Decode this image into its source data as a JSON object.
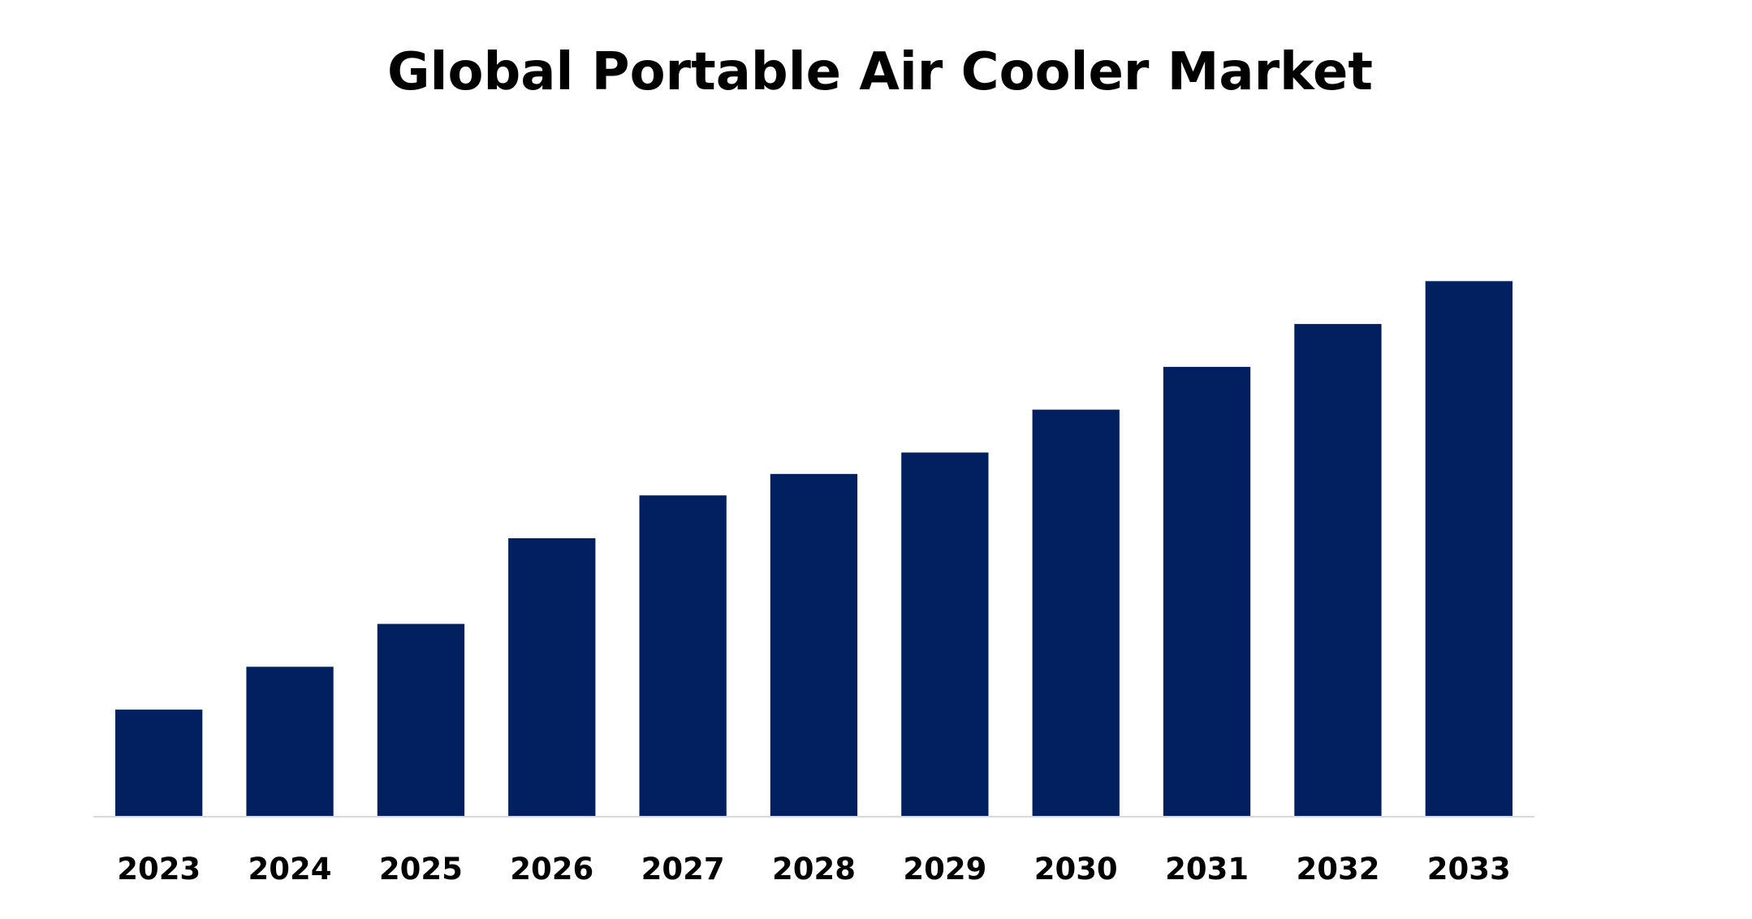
{
  "chart_data": {
    "type": "bar",
    "title": "Global Portable Air Cooler Market",
    "xlabel": "",
    "ylabel": "",
    "categories": [
      "2023",
      "2024",
      "2025",
      "2026",
      "2027",
      "2028",
      "2029",
      "2030",
      "2031",
      "2032",
      "2033"
    ],
    "values": [
      1.0,
      1.4,
      1.8,
      2.6,
      3.0,
      3.2,
      3.4,
      3.8,
      4.2,
      4.6,
      5.0
    ],
    "ylim": [
      0,
      6.2
    ],
    "grid": false,
    "legend": "none",
    "bar_color": "#02205f",
    "axis_color": "#d9d9d9"
  }
}
